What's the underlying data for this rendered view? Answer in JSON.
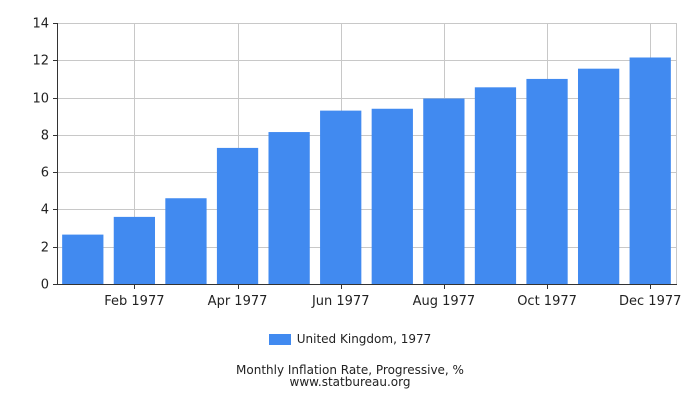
{
  "chart_data": {
    "type": "bar",
    "categories": [
      "Jan 1977",
      "Feb 1977",
      "Mar 1977",
      "Apr 1977",
      "May 1977",
      "Jun 1977",
      "Jul 1977",
      "Aug 1977",
      "Sep 1977",
      "Oct 1977",
      "Nov 1977",
      "Dec 1977"
    ],
    "x_tick_labels": [
      "Feb 1977",
      "Apr 1977",
      "Jun 1977",
      "Aug 1977",
      "Oct 1977",
      "Dec 1977"
    ],
    "series": [
      {
        "name": "United Kingdom, 1977",
        "values": [
          2.65,
          3.6,
          4.6,
          7.3,
          8.15,
          9.3,
          9.4,
          9.95,
          10.55,
          11.0,
          11.55,
          12.15
        ]
      }
    ],
    "ylim": [
      0,
      14
    ],
    "y_ticks": [
      0,
      2,
      4,
      6,
      8,
      10,
      12,
      14
    ],
    "grid": true,
    "legend_position": "bottom",
    "bar_color": "#418af0",
    "title": "Monthly Inflation Rate, Progressive, %",
    "source": "www.statbureau.org"
  }
}
